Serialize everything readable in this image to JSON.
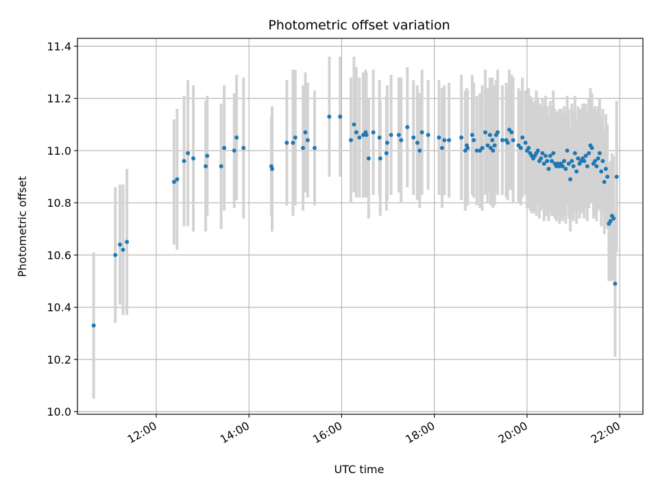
{
  "chart_data": {
    "type": "scatter",
    "title": "Photometric offset variation",
    "xlabel": "UTC time",
    "ylabel": "Photometric offset",
    "x_unit": "UTC time of day (HH:MM)",
    "xlim": [
      "10:18",
      "22:30"
    ],
    "ylim": [
      9.99,
      11.43
    ],
    "x_ticks": [
      "12:00",
      "14:00",
      "16:00",
      "18:00",
      "20:00",
      "22:00"
    ],
    "y_ticks": [
      "10.0",
      "10.2",
      "10.4",
      "10.6",
      "10.8",
      "11.0",
      "11.2",
      "11.4"
    ],
    "grid": true,
    "point_color": "#1f77b4",
    "errorbar_color": "#d3d3d3",
    "series": [
      {
        "x": [
          "10:39",
          "11:07",
          "11:13",
          "11:17",
          "11:22",
          "12:23",
          "12:27",
          "12:36",
          "12:41",
          "12:48",
          "13:04",
          "13:06",
          "13:24",
          "13:28",
          "13:41",
          "13:44",
          "13:53",
          "14:29",
          "14:30",
          "14:49",
          "14:57",
          "15:00",
          "15:10",
          "15:13",
          "15:16",
          "15:25",
          "15:44",
          "15:58",
          "16:12",
          "16:16",
          "16:19",
          "16:23",
          "16:28",
          "16:31",
          "16:32",
          "16:35",
          "16:41",
          "16:49",
          "16:50",
          "16:58",
          "16:59",
          "17:04",
          "17:14",
          "17:17",
          "17:25",
          "17:33",
          "17:38",
          "17:41",
          "17:44",
          "17:52",
          "18:06",
          "18:10",
          "18:13",
          "18:19",
          "18:35",
          "18:40",
          "18:42",
          "18:43",
          "18:49",
          "18:51",
          "18:55",
          "18:59",
          "19:02",
          "19:06",
          "19:09",
          "19:12",
          "19:13",
          "19:15",
          "19:16",
          "19:18",
          "19:20",
          "19:22",
          "19:28",
          "19:33",
          "19:35",
          "19:37",
          "19:40",
          "19:42",
          "19:49",
          "19:52",
          "19:54",
          "19:58",
          "20:00",
          "20:02",
          "20:04",
          "20:06",
          "20:08",
          "20:10",
          "20:12",
          "20:14",
          "20:16",
          "20:18",
          "20:20",
          "20:22",
          "20:24",
          "20:26",
          "20:28",
          "20:30",
          "20:32",
          "20:34",
          "20:36",
          "20:38",
          "20:40",
          "20:42",
          "20:44",
          "20:46",
          "20:48",
          "20:50",
          "20:52",
          "20:54",
          "20:56",
          "20:58",
          "21:00",
          "21:02",
          "21:04",
          "21:06",
          "21:08",
          "21:10",
          "21:12",
          "21:14",
          "21:16",
          "21:18",
          "21:20",
          "21:22",
          "21:24",
          "21:26",
          "21:28",
          "21:30",
          "21:32",
          "21:34",
          "21:36",
          "21:38",
          "21:40",
          "21:42",
          "21:44",
          "21:46",
          "21:48",
          "21:50",
          "21:52",
          "21:54",
          "21:56"
        ],
        "y": [
          10.33,
          10.6,
          10.64,
          10.62,
          10.65,
          10.88,
          10.89,
          10.96,
          10.99,
          10.97,
          10.94,
          10.98,
          10.94,
          11.01,
          11.0,
          11.05,
          11.01,
          10.94,
          10.93,
          11.03,
          11.03,
          11.05,
          11.01,
          11.07,
          11.04,
          11.01,
          11.13,
          11.13,
          11.04,
          11.1,
          11.07,
          11.05,
          11.06,
          11.07,
          11.06,
          10.97,
          11.07,
          11.05,
          10.97,
          10.99,
          11.03,
          11.06,
          11.06,
          11.04,
          11.09,
          11.05,
          11.03,
          11.0,
          11.07,
          11.06,
          11.05,
          11.01,
          11.04,
          11.04,
          11.05,
          11.0,
          11.02,
          11.01,
          11.06,
          11.04,
          11.0,
          11.0,
          11.01,
          11.07,
          11.02,
          11.06,
          11.01,
          11.04,
          11.0,
          11.02,
          11.06,
          11.07,
          11.04,
          11.04,
          11.03,
          11.08,
          11.07,
          11.04,
          11.02,
          11.01,
          11.05,
          11.03,
          11.0,
          11.01,
          10.99,
          10.98,
          10.97,
          10.98,
          10.99,
          11.0,
          10.96,
          10.97,
          10.99,
          10.95,
          10.98,
          10.96,
          10.93,
          10.98,
          10.96,
          10.99,
          10.95,
          10.94,
          10.95,
          10.94,
          10.95,
          10.94,
          10.96,
          10.93,
          11.0,
          10.95,
          10.89,
          10.96,
          10.94,
          10.99,
          10.92,
          10.97,
          10.95,
          10.96,
          10.97,
          10.96,
          10.98,
          10.94,
          10.99,
          11.02,
          11.01,
          10.95,
          10.96,
          10.94,
          10.97,
          10.99,
          10.92,
          10.96,
          10.88,
          10.93,
          10.9,
          10.72,
          10.73,
          10.75,
          10.74,
          10.49,
          10.9
        ],
        "yerr": [
          0.28,
          0.26,
          0.23,
          0.25,
          0.28,
          0.24,
          0.27,
          0.25,
          0.28,
          0.28,
          0.25,
          0.23,
          0.24,
          0.24,
          0.22,
          0.24,
          0.27,
          0.19,
          0.24,
          0.24,
          0.28,
          0.26,
          0.24,
          0.23,
          0.22,
          0.22,
          0.23,
          0.23,
          0.24,
          0.26,
          0.25,
          0.23,
          0.24,
          0.24,
          0.24,
          0.23,
          0.24,
          0.22,
          0.22,
          0.22,
          0.22,
          0.23,
          0.22,
          0.24,
          0.23,
          0.22,
          0.22,
          0.22,
          0.24,
          0.21,
          0.22,
          0.23,
          0.21,
          0.22,
          0.24,
          0.23,
          0.22,
          0.22,
          0.23,
          0.22,
          0.21,
          0.22,
          0.24,
          0.24,
          0.22,
          0.22,
          0.22,
          0.24,
          0.22,
          0.23,
          0.21,
          0.24,
          0.21,
          0.22,
          0.22,
          0.23,
          0.22,
          0.24,
          0.22,
          0.22,
          0.23,
          0.2,
          0.22,
          0.23,
          0.22,
          0.22,
          0.21,
          0.21,
          0.24,
          0.2,
          0.22,
          0.2,
          0.21,
          0.22,
          0.23,
          0.21,
          0.2,
          0.21,
          0.21,
          0.24,
          0.21,
          0.21,
          0.2,
          0.22,
          0.21,
          0.21,
          0.21,
          0.21,
          0.21,
          0.21,
          0.2,
          0.22,
          0.21,
          0.22,
          0.2,
          0.2,
          0.21,
          0.2,
          0.21,
          0.22,
          0.2,
          0.21,
          0.21,
          0.22,
          0.21,
          0.21,
          0.21,
          0.21,
          0.2,
          0.21,
          0.21,
          0.2,
          0.2,
          0.21,
          0.2,
          0.22,
          0.23,
          0.24,
          0.24,
          0.28,
          0.29
        ]
      }
    ]
  }
}
